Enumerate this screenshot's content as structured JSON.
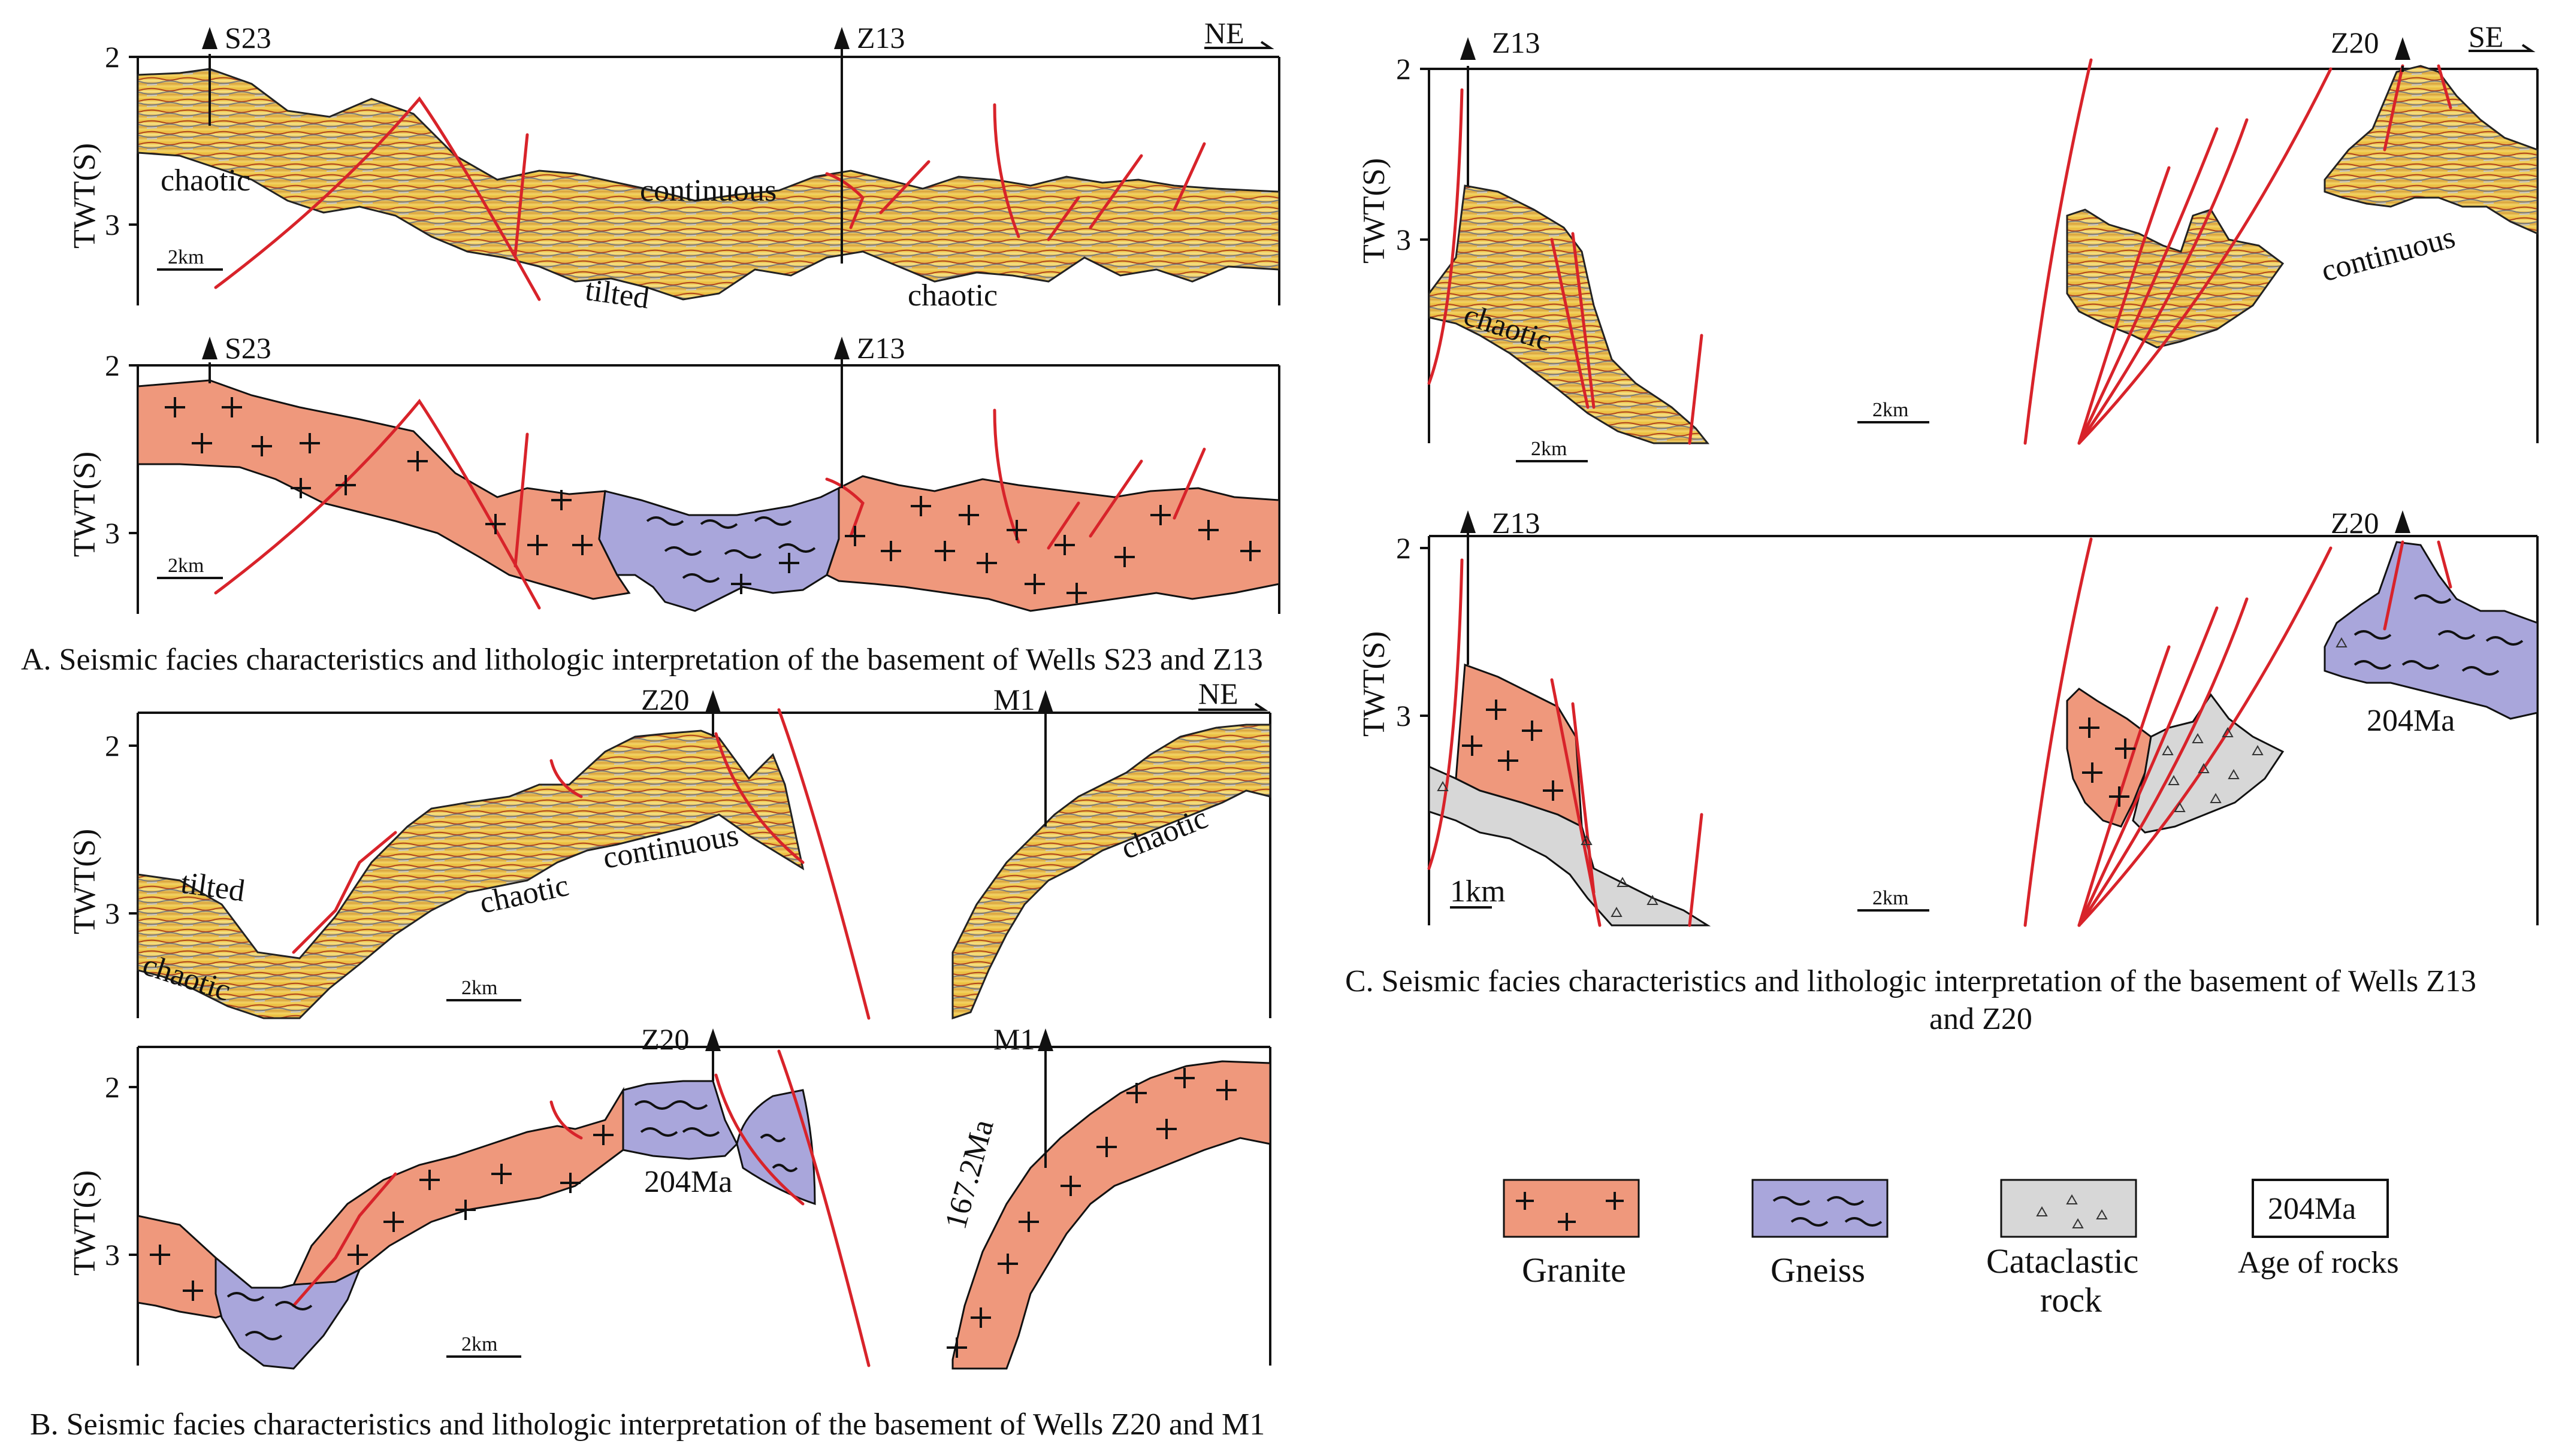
{
  "axis": {
    "ylabel": "TWT(S)",
    "tick_2": "2",
    "tick_3": "3"
  },
  "scales": {
    "two_km": "2km",
    "one_km": "1km"
  },
  "panel_a": {
    "caption": "A. Seismic facies characteristics and lithologic interpretation of the basement of Wells S23 and Z13",
    "direction": "NE",
    "well_left": "S23",
    "well_right": "Z13",
    "facies": {
      "chaotic_left": "chaotic",
      "continuous": "continuous",
      "tilted": "tilted",
      "chaotic_right": "chaotic"
    }
  },
  "panel_b": {
    "caption": "B. Seismic facies characteristics and lithologic interpretation of the basement of Wells Z20 and M1",
    "direction": "NE",
    "well_left": "Z20",
    "well_right": "M1",
    "facies": {
      "tilted": "tilted",
      "chaotic_lower": "chaotic",
      "chaotic_mid": "chaotic",
      "continuous": "continuous",
      "chaotic_right": "chaotic"
    },
    "ages": {
      "gneiss_age": "204Ma",
      "granite_age": "167.2Ma"
    }
  },
  "panel_c": {
    "caption_line1": "C. Seismic facies characteristics and lithologic interpretation of the basement of Wells Z13",
    "caption_line2": "and Z20",
    "direction": "SE",
    "well_left": "Z13",
    "well_right": "Z20",
    "facies": {
      "chaotic": "chaotic",
      "continuous": "continuous"
    },
    "ages": {
      "gneiss_age": "204Ma"
    }
  },
  "legend": {
    "granite": "Granite",
    "gneiss": "Gneiss",
    "cataclastic_line1": "Cataclastic",
    "cataclastic_line2": "rock",
    "age_sample": "204Ma",
    "age_label": "Age of rocks"
  },
  "colors": {
    "granite": "#ef987c",
    "gneiss": "#a9a6db",
    "cataclastic": "#d7d7d7",
    "fault": "#d8232a"
  }
}
